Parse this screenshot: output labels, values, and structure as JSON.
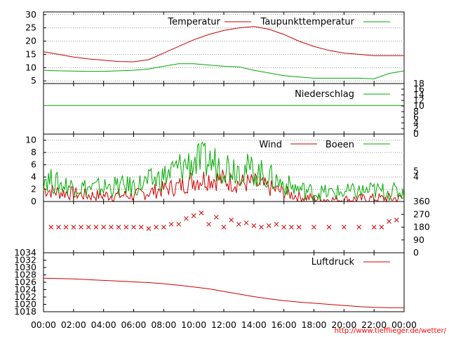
{
  "chart_data": [
    {
      "type": "line",
      "panel": "temperature",
      "x": [
        "00:00",
        "01:00",
        "02:00",
        "03:00",
        "04:00",
        "05:00",
        "06:00",
        "07:00",
        "08:00",
        "09:00",
        "10:00",
        "11:00",
        "12:00",
        "13:00",
        "14:00",
        "15:00",
        "16:00",
        "17:00",
        "18:00",
        "19:00",
        "20:00",
        "21:00",
        "22:00",
        "23:00",
        "24:00"
      ],
      "series": [
        {
          "name": "Temperatur",
          "color": "#cc0000",
          "values": [
            16.0,
            15.0,
            14.0,
            13.3,
            12.8,
            12.3,
            12.2,
            13.0,
            15.5,
            18.0,
            20.5,
            22.5,
            24.0,
            25.0,
            25.5,
            24.5,
            22.5,
            20.0,
            18.0,
            16.5,
            15.5,
            15.0,
            14.5,
            14.5,
            14.5
          ]
        },
        {
          "name": "Taupunkttemperatur",
          "color": "#00aa00",
          "values": [
            9.0,
            8.8,
            8.7,
            8.6,
            8.6,
            8.8,
            9.0,
            9.5,
            10.5,
            11.5,
            11.5,
            11.0,
            10.5,
            10.3,
            9.0,
            8.0,
            7.0,
            6.5,
            6.0,
            6.0,
            6.0,
            6.0,
            5.8,
            7.8,
            8.8
          ]
        }
      ],
      "ylim": [
        4,
        31
      ],
      "yticks": [
        "5",
        "10",
        "15",
        "20",
        "25",
        "30"
      ],
      "grid": true,
      "legend": "top-right"
    },
    {
      "type": "line",
      "panel": "precipitation",
      "series": [
        {
          "name": "Niederschlag",
          "color": "#00aa00",
          "values": [
            10.2,
            10.2
          ]
        }
      ],
      "ylim": [
        0,
        18
      ],
      "yticks_right": [
        "0",
        "2",
        "4",
        "6",
        "8",
        "10",
        "12",
        "14",
        "16",
        "18"
      ],
      "legend": "top-right"
    },
    {
      "type": "line",
      "panel": "wind",
      "x": [
        "00:00",
        "01:00",
        "02:00",
        "03:00",
        "04:00",
        "05:00",
        "06:00",
        "07:00",
        "08:00",
        "09:00",
        "10:00",
        "11:00",
        "12:00",
        "13:00",
        "14:00",
        "15:00",
        "16:00",
        "17:00",
        "18:00",
        "19:00",
        "20:00",
        "21:00",
        "22:00",
        "23:00",
        "24:00"
      ],
      "series": [
        {
          "name": "Wind",
          "color": "#cc0000",
          "values": [
            2.0,
            1.5,
            1.3,
            1.0,
            1.0,
            1.0,
            1.0,
            1.5,
            2.0,
            2.5,
            3.5,
            3.8,
            3.5,
            3.0,
            3.0,
            2.2,
            1.5,
            0.8,
            0.5,
            0.3,
            0.3,
            0.4,
            0.5,
            0.5,
            0.5
          ]
        },
        {
          "name": "Boeen",
          "color": "#00aa00",
          "values": [
            4.0,
            2.8,
            2.5,
            2.2,
            2.3,
            2.5,
            2.5,
            3.2,
            4.0,
            5.5,
            6.5,
            6.5,
            6.0,
            5.5,
            5.0,
            4.0,
            2.8,
            2.0,
            1.5,
            1.4,
            1.5,
            1.6,
            1.8,
            1.6,
            1.6
          ]
        }
      ],
      "ylim": [
        0,
        11
      ],
      "yticks": [
        "0",
        "2",
        "4",
        "6",
        "8",
        "10"
      ],
      "yticks_right": [
        "4",
        "5"
      ],
      "legend": "top-right"
    },
    {
      "type": "scatter",
      "panel": "wind-direction",
      "color": "#cc0000",
      "ylim": [
        0,
        360
      ],
      "yticks_right": [
        "0",
        "90",
        "180",
        "270",
        "360"
      ],
      "x": [
        "00:30",
        "01:00",
        "01:30",
        "02:00",
        "02:30",
        "03:00",
        "03:30",
        "04:00",
        "04:30",
        "05:00",
        "05:30",
        "06:00",
        "06:30",
        "07:00",
        "07:30",
        "08:00",
        "08:30",
        "09:00",
        "09:30",
        "10:00",
        "10:30",
        "11:00",
        "11:30",
        "12:00",
        "12:30",
        "13:00",
        "13:30",
        "14:00",
        "14:30",
        "15:00",
        "15:30",
        "16:00",
        "16:30",
        "17:00",
        "18:00",
        "19:00",
        "20:00",
        "21:00",
        "22:00",
        "22:30",
        "23:00",
        "23:30"
      ],
      "values": [
        180,
        180,
        180,
        180,
        180,
        180,
        180,
        180,
        180,
        180,
        180,
        180,
        180,
        170,
        180,
        180,
        200,
        200,
        240,
        260,
        280,
        200,
        250,
        180,
        230,
        200,
        210,
        190,
        180,
        190,
        200,
        180,
        180,
        180,
        180,
        180,
        180,
        180,
        180,
        180,
        220,
        230
      ]
    },
    {
      "type": "line",
      "panel": "pressure",
      "x": [
        "00:00",
        "01:00",
        "02:00",
        "03:00",
        "04:00",
        "05:00",
        "06:00",
        "07:00",
        "08:00",
        "09:00",
        "10:00",
        "11:00",
        "12:00",
        "13:00",
        "14:00",
        "15:00",
        "16:00",
        "17:00",
        "18:00",
        "19:00",
        "20:00",
        "21:00",
        "22:00",
        "23:00",
        "24:00"
      ],
      "series": [
        {
          "name": "Luftdruck",
          "color": "#cc0000",
          "values": [
            1027.1,
            1027.0,
            1026.9,
            1026.7,
            1026.5,
            1026.3,
            1026.1,
            1025.9,
            1025.6,
            1025.2,
            1024.7,
            1024.2,
            1023.5,
            1022.8,
            1022.1,
            1021.5,
            1021.0,
            1020.6,
            1020.3,
            1020.0,
            1019.7,
            1019.4,
            1019.2,
            1019.1,
            1019.1
          ]
        }
      ],
      "ylim": [
        1018,
        1034
      ],
      "yticks": [
        "1018",
        "1020",
        "1022",
        "1024",
        "1026",
        "1028",
        "1030",
        "1032",
        "1034"
      ],
      "legend": "top-right"
    }
  ],
  "x_axis": {
    "ticks": [
      "00:00",
      "02:00",
      "04:00",
      "06:00",
      "08:00",
      "10:00",
      "12:00",
      "14:00",
      "16:00",
      "18:00",
      "20:00",
      "22:00",
      "00:00"
    ]
  },
  "credit": "http://www.tiefflieger.de/wetter/"
}
